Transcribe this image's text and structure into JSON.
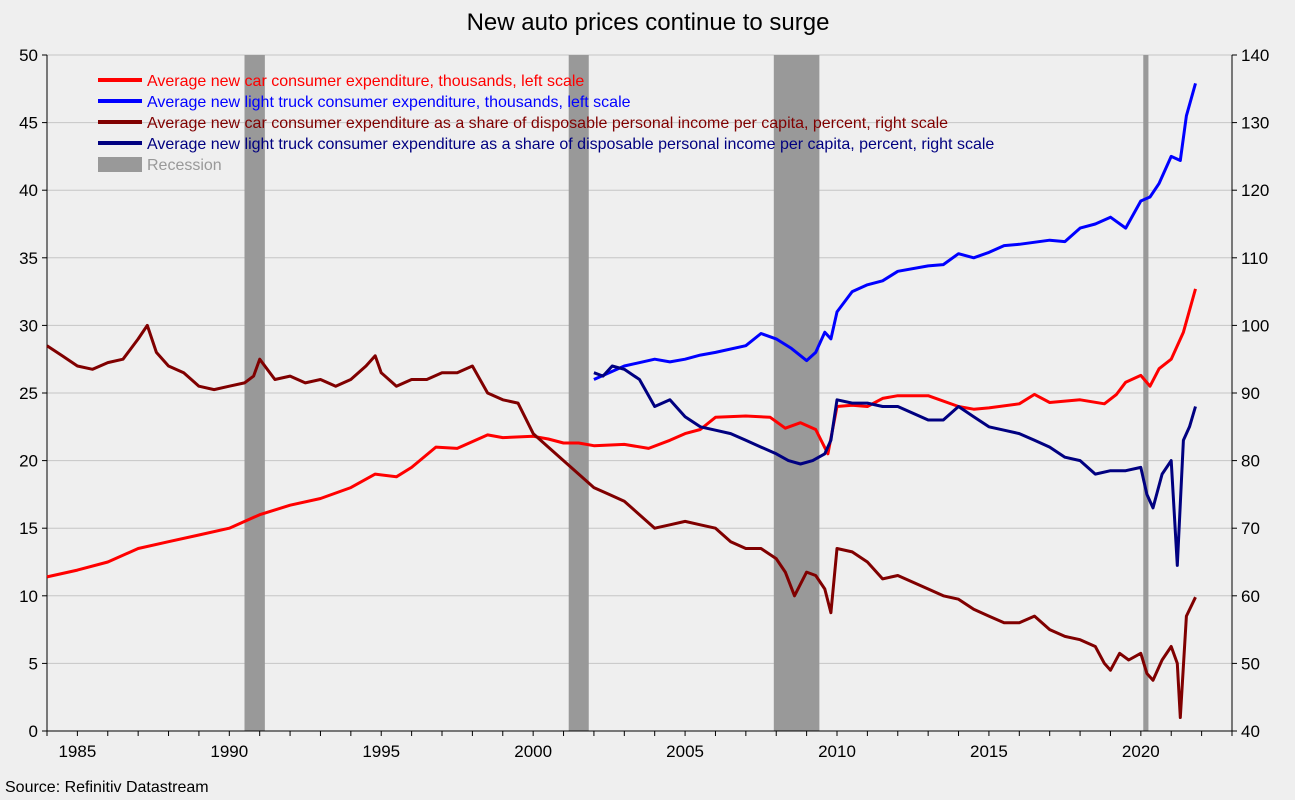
{
  "chart_data": {
    "type": "line",
    "title": "New auto prices continue to surge",
    "source": "Source: Refinitiv Datastream",
    "x_range": [
      1984.0,
      2023.0
    ],
    "x_ticks": [
      1985,
      1990,
      1995,
      2000,
      2005,
      2010,
      2015,
      2020
    ],
    "y_left": {
      "range": [
        0,
        50
      ],
      "ticks": [
        0,
        5,
        10,
        15,
        20,
        25,
        30,
        35,
        40,
        45,
        50
      ]
    },
    "y_right": {
      "range": [
        40,
        140
      ],
      "ticks": [
        40,
        50,
        60,
        70,
        80,
        90,
        100,
        110,
        120,
        130,
        140
      ]
    },
    "grid": "horizontal",
    "legend_position": "top-left",
    "recessions": [
      [
        1990.5,
        1991.17
      ],
      [
        2001.17,
        2001.83
      ],
      [
        2007.92,
        2009.42
      ],
      [
        2020.08,
        2020.25
      ]
    ],
    "recession_label": "Recession",
    "recession_color": "#999999",
    "series": [
      {
        "name": "Average new car consumer expenditure, thousands, left scale",
        "axis": "left",
        "color": "#ff0000",
        "x": [
          1984.0,
          1985.0,
          1986.0,
          1987.0,
          1988.0,
          1989.0,
          1990.0,
          1990.8,
          1991.0,
          1992.0,
          1993.0,
          1994.0,
          1994.8,
          1995.5,
          1996.0,
          1996.8,
          1997.5,
          1998.5,
          1999.0,
          2000.0,
          2000.5,
          2001.0,
          2001.5,
          2002.0,
          2003.0,
          2003.8,
          2004.5,
          2005.0,
          2005.5,
          2006.0,
          2007.0,
          2007.8,
          2008.3,
          2008.8,
          2009.3,
          2009.7,
          2010.0,
          2010.5,
          2011.0,
          2011.5,
          2012.0,
          2013.0,
          2014.0,
          2014.5,
          2015.0,
          2016.0,
          2016.5,
          2017.0,
          2018.0,
          2018.8,
          2019.2,
          2019.5,
          2020.0,
          2020.3,
          2020.6,
          2021.0,
          2021.4,
          2021.8
        ],
        "values": [
          11.4,
          11.9,
          12.5,
          13.5,
          14.0,
          14.5,
          15.0,
          15.8,
          16.0,
          16.7,
          17.2,
          18.0,
          19.0,
          18.8,
          19.5,
          21.0,
          20.9,
          21.9,
          21.7,
          21.8,
          21.6,
          21.3,
          21.3,
          21.1,
          21.2,
          20.9,
          21.5,
          22.0,
          22.3,
          23.2,
          23.3,
          23.2,
          22.4,
          22.8,
          22.3,
          20.5,
          24.0,
          24.1,
          24.0,
          24.6,
          24.8,
          24.8,
          24.0,
          23.8,
          23.9,
          24.2,
          24.9,
          24.3,
          24.5,
          24.2,
          24.9,
          25.8,
          26.3,
          25.5,
          26.8,
          27.5,
          29.5,
          32.7
        ]
      },
      {
        "name": "Average new light truck consumer expenditure, thousands, left scale",
        "axis": "left",
        "color": "#0000ff",
        "x": [
          2002.0,
          2002.5,
          2003.0,
          2004.0,
          2004.5,
          2005.0,
          2005.5,
          2006.0,
          2007.0,
          2007.5,
          2008.0,
          2008.5,
          2009.0,
          2009.3,
          2009.6,
          2009.8,
          2010.0,
          2010.5,
          2011.0,
          2011.5,
          2012.0,
          2013.0,
          2013.5,
          2014.0,
          2014.5,
          2015.0,
          2015.5,
          2016.0,
          2017.0,
          2017.5,
          2018.0,
          2018.5,
          2019.0,
          2019.5,
          2020.0,
          2020.3,
          2020.6,
          2021.0,
          2021.3,
          2021.5,
          2021.8
        ],
        "values": [
          26.0,
          26.5,
          27.0,
          27.5,
          27.3,
          27.5,
          27.8,
          28.0,
          28.5,
          29.4,
          29.0,
          28.3,
          27.4,
          28.0,
          29.5,
          29.0,
          31.0,
          32.5,
          33.0,
          33.3,
          34.0,
          34.4,
          34.5,
          35.3,
          35.0,
          35.4,
          35.9,
          36.0,
          36.3,
          36.2,
          37.2,
          37.5,
          38.0,
          37.2,
          39.2,
          39.5,
          40.5,
          42.5,
          42.2,
          45.5,
          47.9
        ]
      },
      {
        "name": "Average new car consumer expenditure as a share of disposable personal income per capita, percent, right scale",
        "axis": "right",
        "color": "#800000",
        "x": [
          1984.0,
          1984.5,
          1985.0,
          1985.5,
          1986.0,
          1986.5,
          1987.0,
          1987.3,
          1987.6,
          1988.0,
          1988.5,
          1989.0,
          1989.5,
          1990.0,
          1990.5,
          1990.8,
          1991.0,
          1991.5,
          1992.0,
          1992.5,
          1993.0,
          1993.5,
          1994.0,
          1994.5,
          1994.8,
          1995.0,
          1995.5,
          1996.0,
          1996.5,
          1997.0,
          1997.5,
          1998.0,
          1998.5,
          1999.0,
          1999.5,
          2000.0,
          2000.5,
          2001.0,
          2001.5,
          2002.0,
          2002.5,
          2003.0,
          2003.5,
          2004.0,
          2004.5,
          2005.0,
          2005.5,
          2006.0,
          2006.5,
          2007.0,
          2007.5,
          2008.0,
          2008.3,
          2008.6,
          2009.0,
          2009.3,
          2009.6,
          2009.8,
          2010.0,
          2010.5,
          2011.0,
          2011.5,
          2012.0,
          2012.5,
          2013.0,
          2013.5,
          2014.0,
          2014.5,
          2015.0,
          2015.5,
          2016.0,
          2016.5,
          2017.0,
          2017.5,
          2018.0,
          2018.5,
          2018.8,
          2019.0,
          2019.3,
          2019.6,
          2020.0,
          2020.2,
          2020.4,
          2020.7,
          2021.0,
          2021.2,
          2021.3,
          2021.5,
          2021.8
        ],
        "values": [
          97.0,
          95.5,
          94.0,
          93.5,
          94.5,
          95.0,
          98.0,
          100.0,
          96.0,
          94.0,
          93.0,
          91.0,
          90.5,
          91.0,
          91.5,
          92.5,
          95.0,
          92.0,
          92.5,
          91.5,
          92.0,
          91.0,
          92.0,
          94.0,
          95.5,
          93.0,
          91.0,
          92.0,
          92.0,
          93.0,
          93.0,
          94.0,
          90.0,
          89.0,
          88.5,
          84.0,
          82.0,
          80.0,
          78.0,
          76.0,
          75.0,
          74.0,
          72.0,
          70.0,
          70.5,
          71.0,
          70.5,
          70.0,
          68.0,
          67.0,
          67.0,
          65.5,
          63.5,
          60.0,
          63.5,
          63.0,
          61.0,
          57.5,
          67.0,
          66.5,
          65.0,
          62.5,
          63.0,
          62.0,
          61.0,
          60.0,
          59.5,
          58.0,
          57.0,
          56.0,
          56.0,
          57.0,
          55.0,
          54.0,
          53.5,
          52.5,
          50.0,
          49.0,
          51.5,
          50.5,
          51.5,
          48.5,
          47.5,
          50.5,
          52.5,
          50.0,
          42.0,
          57.0,
          59.8
        ]
      },
      {
        "name": "Average new light truck consumer expenditure as a share of disposable personal income per capita, percent, right scale",
        "axis": "right",
        "color": "#000080",
        "x": [
          2002.0,
          2002.3,
          2002.6,
          2003.0,
          2003.5,
          2004.0,
          2004.5,
          2005.0,
          2005.5,
          2006.0,
          2006.5,
          2007.0,
          2007.5,
          2008.0,
          2008.4,
          2008.8,
          2009.2,
          2009.6,
          2009.8,
          2010.0,
          2010.5,
          2011.0,
          2011.5,
          2012.0,
          2012.5,
          2013.0,
          2013.5,
          2014.0,
          2014.5,
          2015.0,
          2015.5,
          2016.0,
          2016.5,
          2017.0,
          2017.5,
          2018.0,
          2018.5,
          2019.0,
          2019.5,
          2020.0,
          2020.2,
          2020.4,
          2020.7,
          2021.0,
          2021.2,
          2021.4,
          2021.6,
          2021.8
        ],
        "values": [
          93.0,
          92.5,
          94.0,
          93.5,
          92.0,
          88.0,
          89.0,
          86.5,
          85.0,
          84.5,
          84.0,
          83.0,
          82.0,
          81.0,
          80.0,
          79.5,
          80.0,
          81.0,
          83.0,
          89.0,
          88.5,
          88.5,
          88.0,
          88.0,
          87.0,
          86.0,
          86.0,
          88.0,
          86.5,
          85.0,
          84.5,
          84.0,
          83.0,
          82.0,
          80.5,
          80.0,
          78.0,
          78.5,
          78.5,
          79.0,
          75.0,
          73.0,
          78.0,
          80.0,
          64.5,
          83.0,
          85.0,
          88.0
        ]
      }
    ]
  }
}
